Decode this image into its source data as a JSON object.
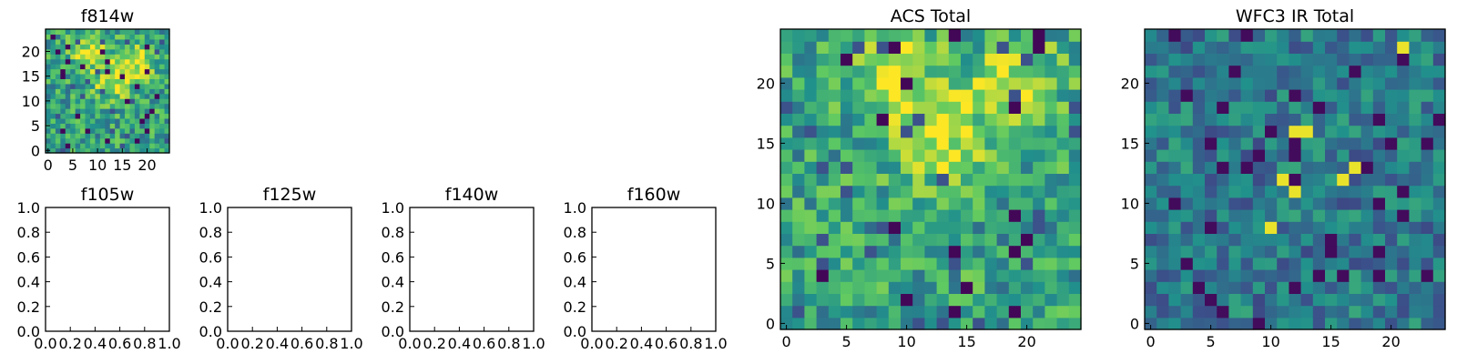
{
  "figure": {
    "background": "#ffffff",
    "colormap": "viridis",
    "colormap_stops": [
      "#440154",
      "#3b528b",
      "#21918c",
      "#5ec962",
      "#fde725"
    ]
  },
  "chart_data": [
    {
      "id": "f814w",
      "type": "heatmap",
      "title": "f814w",
      "grid_size": 25,
      "xlim": [
        -0.5,
        24.5
      ],
      "ylim": [
        -0.5,
        24.5
      ],
      "xticks": [
        0,
        5,
        10,
        15,
        20
      ],
      "yticks": [
        0,
        5,
        10,
        15,
        20
      ],
      "seed": 7,
      "bright_centers": [
        [
          13,
          14
        ],
        [
          18,
          18
        ],
        [
          8,
          20
        ]
      ],
      "value_range": [
        0,
        1
      ]
    },
    {
      "id": "f105w",
      "type": "empty",
      "title": "f105w",
      "xlim": [
        0,
        1
      ],
      "ylim": [
        0,
        1
      ],
      "xticks": [
        "0.0",
        "0.2",
        "0.4",
        "0.6",
        "0.8",
        "1.0"
      ],
      "yticks": [
        "0.0",
        "0.2",
        "0.4",
        "0.6",
        "0.8",
        "1.0"
      ]
    },
    {
      "id": "f125w",
      "type": "empty",
      "title": "f125w",
      "xlim": [
        0,
        1
      ],
      "ylim": [
        0,
        1
      ],
      "xticks": [
        "0.0",
        "0.2",
        "0.4",
        "0.6",
        "0.8",
        "1.0"
      ],
      "yticks": [
        "0.0",
        "0.2",
        "0.4",
        "0.6",
        "0.8",
        "1.0"
      ]
    },
    {
      "id": "f140w",
      "type": "empty",
      "title": "f140w",
      "xlim": [
        0,
        1
      ],
      "ylim": [
        0,
        1
      ],
      "xticks": [
        "0.0",
        "0.2",
        "0.4",
        "0.6",
        "0.8",
        "1.0"
      ],
      "yticks": [
        "0.0",
        "0.2",
        "0.4",
        "0.6",
        "0.8",
        "1.0"
      ]
    },
    {
      "id": "f160w",
      "type": "empty",
      "title": "f160w",
      "xlim": [
        0,
        1
      ],
      "ylim": [
        0,
        1
      ],
      "xticks": [
        "0.0",
        "0.2",
        "0.4",
        "0.6",
        "0.8",
        "1.0"
      ],
      "yticks": [
        "0.0",
        "0.2",
        "0.4",
        "0.6",
        "0.8",
        "1.0"
      ]
    },
    {
      "id": "acs_total",
      "type": "heatmap",
      "title": "ACS Total",
      "grid_size": 25,
      "xlim": [
        -0.5,
        24.5
      ],
      "ylim": [
        -0.5,
        24.5
      ],
      "xticks": [
        0,
        5,
        10,
        15,
        20
      ],
      "yticks": [
        0,
        5,
        10,
        15,
        20
      ],
      "seed": 11,
      "bright_centers": [
        [
          13,
          15
        ],
        [
          9,
          21
        ],
        [
          19,
          20
        ]
      ],
      "value_range": [
        0,
        1
      ]
    },
    {
      "id": "wfc3_ir_total",
      "type": "heatmap",
      "title": "WFC3 IR Total",
      "grid_size": 25,
      "xlim": [
        -0.5,
        24.5
      ],
      "ylim": [
        -0.5,
        24.5
      ],
      "xticks": [
        0,
        5,
        10,
        15,
        20
      ],
      "yticks": [
        0,
        5,
        10,
        15,
        20
      ],
      "seed": 23,
      "bright_pixels": [
        [
          21,
          23
        ],
        [
          12,
          16
        ],
        [
          13,
          16
        ],
        [
          11,
          12
        ],
        [
          12,
          11
        ],
        [
          16,
          12
        ],
        [
          17,
          13
        ],
        [
          10,
          8
        ]
      ],
      "value_range": [
        0,
        1
      ]
    }
  ]
}
